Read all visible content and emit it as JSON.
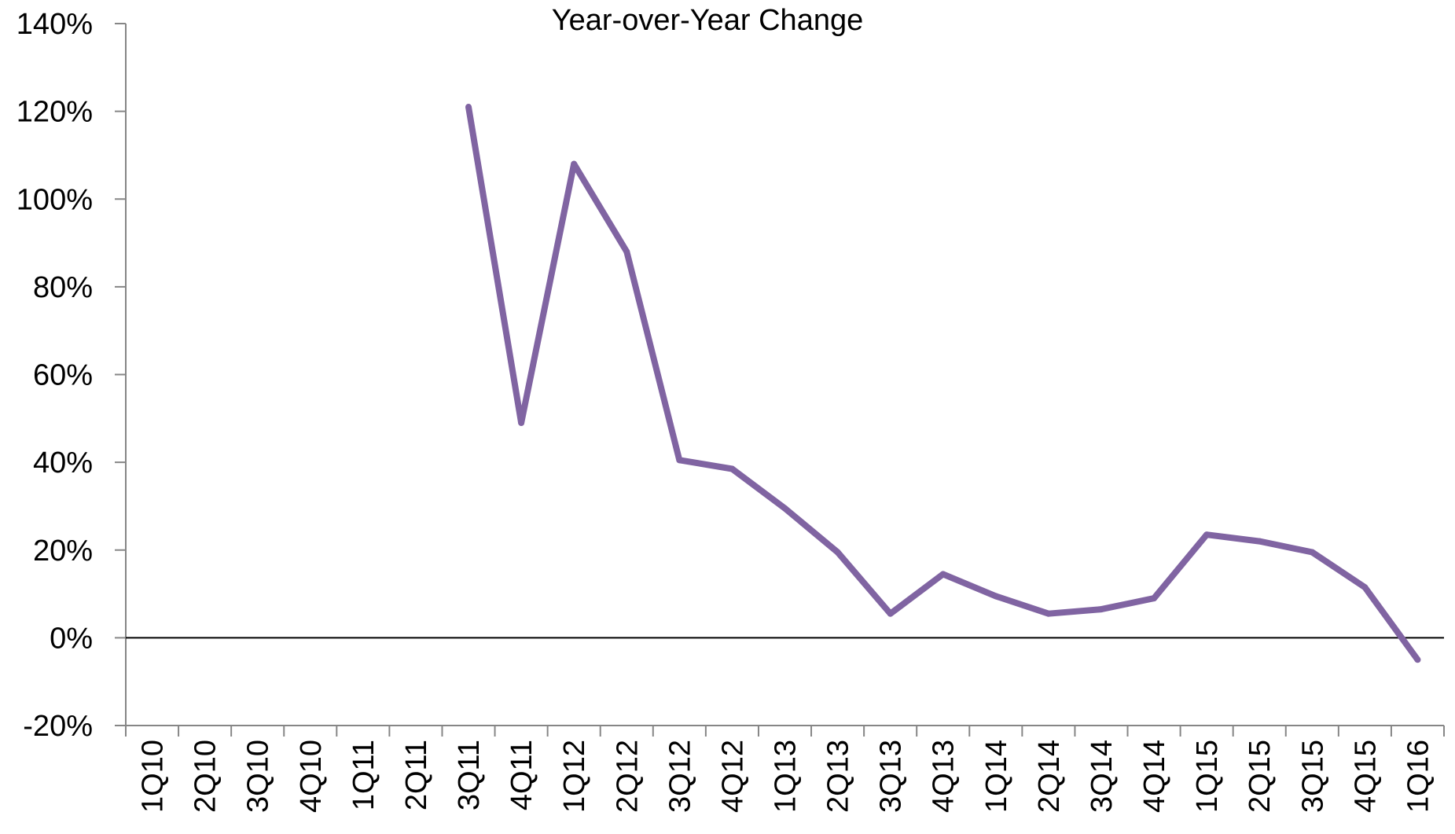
{
  "chart_data": {
    "type": "line",
    "title": "Year-over-Year Change",
    "xlabel": "",
    "ylabel": "",
    "categories": [
      "1Q10",
      "2Q10",
      "3Q10",
      "4Q10",
      "1Q11",
      "2Q11",
      "3Q11",
      "4Q11",
      "1Q12",
      "2Q12",
      "3Q12",
      "4Q12",
      "1Q13",
      "2Q13",
      "3Q13",
      "4Q13",
      "1Q14",
      "2Q14",
      "3Q14",
      "4Q14",
      "1Q15",
      "2Q15",
      "3Q15",
      "4Q15",
      "1Q16"
    ],
    "series": [
      {
        "values": [
          null,
          null,
          null,
          null,
          null,
          null,
          121,
          49,
          108,
          88,
          40.5,
          38.5,
          29.5,
          19.5,
          5.5,
          14.5,
          9.5,
          5.5,
          6.5,
          9,
          23.5,
          22,
          19.5,
          11.5,
          -5
        ]
      }
    ],
    "ylim": [
      -20,
      140
    ],
    "yticks": [
      -20,
      0,
      20,
      40,
      60,
      80,
      100,
      120,
      140
    ],
    "ytick_labels": [
      "-20%",
      "0%",
      "20%",
      "40%",
      "60%",
      "80%",
      "100%",
      "120%",
      "140%"
    ],
    "grid": false,
    "legend": "none",
    "line_color": "#8064A2"
  }
}
